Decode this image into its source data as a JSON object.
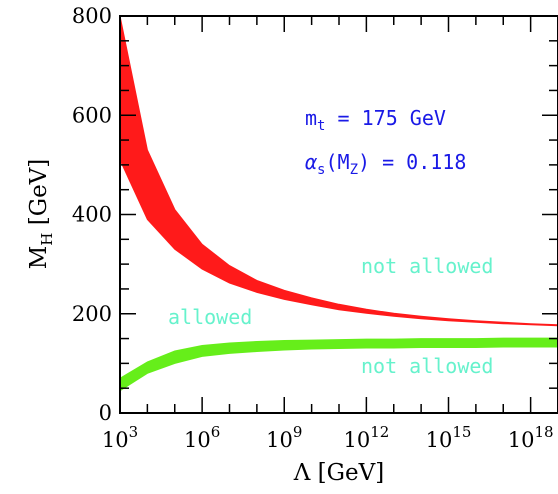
{
  "chart_data": {
    "type": "area",
    "x_scale": "log10",
    "x_ticks": [
      {
        "base": "10",
        "exp": "3"
      },
      {
        "base": "10",
        "exp": "6"
      },
      {
        "base": "10",
        "exp": "9"
      },
      {
        "base": "10",
        "exp": "12"
      },
      {
        "base": "10",
        "exp": "15"
      },
      {
        "base": "10",
        "exp": "18"
      }
    ],
    "y_ticks": [
      "0",
      "200",
      "400",
      "600",
      "800"
    ],
    "xlim": [
      1000.0,
      1e+19
    ],
    "ylim": [
      0,
      800
    ],
    "xlabel": "Λ [GeV]",
    "ylabel": {
      "main": "M",
      "sub": "H",
      "unit": " [GeV]"
    },
    "series": [
      {
        "name": "",
        "color": "#ff1a1a",
        "lambda": [
          1000.0,
          10000.0,
          100000.0,
          1000000.0,
          10000000.0,
          100000000.0,
          1000000000.0,
          10000000000.0,
          100000000000.0,
          1000000000000.0,
          10000000000000.0,
          100000000000000.0,
          1000000000000000.0,
          1e+16,
          1e+17,
          1e+18,
          1e+19
        ],
        "lower": [
          510,
          390,
          330,
          290,
          262,
          243,
          229,
          218,
          208,
          201,
          195,
          190,
          186,
          183,
          180,
          178,
          176
        ],
        "upper": [
          800,
          530,
          410,
          340,
          297,
          267,
          247,
          232,
          219,
          209,
          201,
          195,
          190,
          186,
          183,
          180,
          178
        ]
      },
      {
        "name": "",
        "color": "#66ee1a",
        "lambda": [
          1000.0,
          10000.0,
          100000.0,
          1000000.0,
          10000000.0,
          100000000.0,
          1000000000.0,
          10000000000.0,
          100000000000.0,
          1000000000000.0,
          10000000000000.0,
          100000000000000.0,
          1000000000000000.0,
          1e+16,
          1e+17,
          1e+18,
          1e+19
        ],
        "lower": [
          45,
          80,
          100,
          114,
          120,
          124,
          127,
          129,
          130,
          131,
          131,
          132,
          132,
          132,
          133,
          133,
          133
        ],
        "upper": [
          70,
          103,
          125,
          136,
          141,
          144,
          146,
          147,
          148,
          149,
          149,
          150,
          150,
          150,
          151,
          151,
          151
        ]
      }
    ],
    "annotations": {
      "mt": {
        "sym": "m",
        "sub": "t",
        "text": " = 175 GeV"
      },
      "alpha": {
        "sym": "α",
        "sub": "s",
        "arg": "(M",
        "argsub": "Z",
        "text": ") = 0.118"
      },
      "not_allowed_upper": "not allowed",
      "allowed": "allowed",
      "not_allowed_lower": "not allowed"
    },
    "colors": {
      "annotation_blue": "#1a1ae6",
      "annotation_green": "#66f2cc"
    }
  }
}
